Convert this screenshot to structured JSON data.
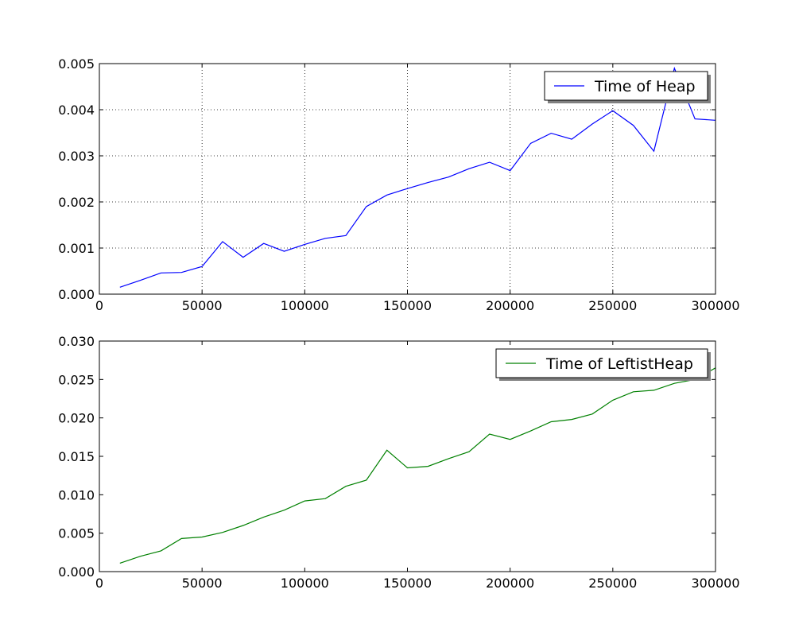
{
  "chart_data": [
    {
      "type": "line",
      "title": "",
      "xlabel": "",
      "ylabel": "",
      "xlim": [
        0,
        300000
      ],
      "ylim": [
        0,
        0.005
      ],
      "xticks": [
        "0",
        "50000",
        "100000",
        "150000",
        "200000",
        "250000",
        "300000"
      ],
      "yticks": [
        "0.000",
        "0.001",
        "0.002",
        "0.003",
        "0.004",
        "0.005"
      ],
      "grid": true,
      "legend_position": "top-right",
      "series": [
        {
          "name": "Time of Heap",
          "color": "#0000ff",
          "x": [
            10000,
            20000,
            30000,
            40000,
            50000,
            60000,
            70000,
            80000,
            90000,
            100000,
            110000,
            120000,
            130000,
            140000,
            150000,
            160000,
            170000,
            180000,
            190000,
            200000,
            210000,
            220000,
            230000,
            240000,
            250000,
            260000,
            270000,
            280000,
            290000,
            300000
          ],
          "values": [
            0.00015,
            0.0003,
            0.00046,
            0.00047,
            0.0006,
            0.00114,
            0.0008,
            0.0011,
            0.00093,
            0.00108,
            0.00121,
            0.00127,
            0.0019,
            0.00215,
            0.00229,
            0.00242,
            0.00254,
            0.00272,
            0.00286,
            0.00268,
            0.00327,
            0.00349,
            0.00336,
            0.00369,
            0.00398,
            0.00366,
            0.0031,
            0.0049,
            0.0038,
            0.00377
          ]
        }
      ]
    },
    {
      "type": "line",
      "title": "",
      "xlabel": "",
      "ylabel": "",
      "xlim": [
        0,
        300000
      ],
      "ylim": [
        0,
        0.03
      ],
      "xticks": [
        "0",
        "50000",
        "100000",
        "150000",
        "200000",
        "250000",
        "300000"
      ],
      "yticks": [
        "0.000",
        "0.005",
        "0.010",
        "0.015",
        "0.020",
        "0.025",
        "0.030"
      ],
      "grid": false,
      "legend_position": "top-right",
      "series": [
        {
          "name": "Time of LeftistHeap",
          "color": "#008000",
          "x": [
            10000,
            20000,
            30000,
            40000,
            50000,
            60000,
            70000,
            80000,
            90000,
            100000,
            110000,
            120000,
            130000,
            140000,
            150000,
            160000,
            170000,
            180000,
            190000,
            200000,
            210000,
            220000,
            230000,
            240000,
            250000,
            260000,
            270000,
            280000,
            290000,
            300000
          ],
          "values": [
            0.0011,
            0.002,
            0.0027,
            0.0043,
            0.0045,
            0.0051,
            0.006,
            0.0071,
            0.008,
            0.0092,
            0.0095,
            0.0111,
            0.0119,
            0.0158,
            0.0135,
            0.0137,
            0.0147,
            0.0156,
            0.0179,
            0.0172,
            0.0183,
            0.0195,
            0.0198,
            0.0205,
            0.0223,
            0.0234,
            0.0236,
            0.0245,
            0.025,
            0.0265
          ]
        }
      ]
    }
  ]
}
